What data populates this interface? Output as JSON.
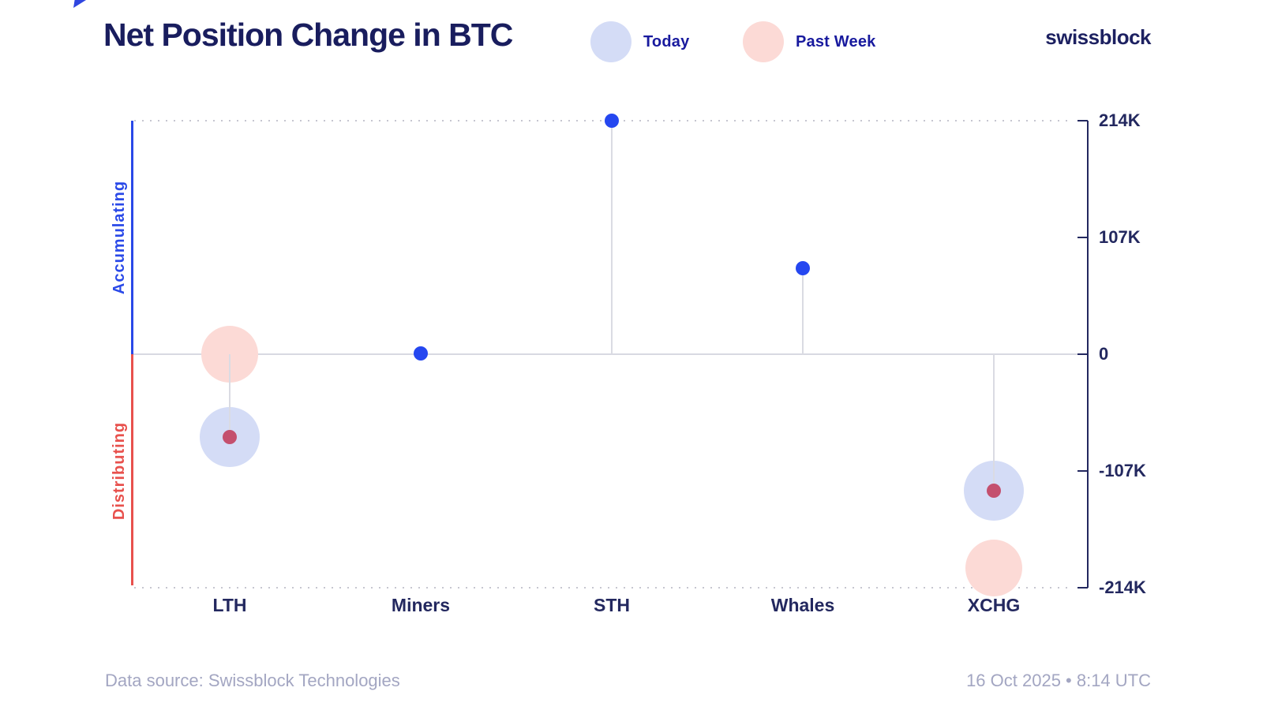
{
  "header": {
    "title": "Net Position Change in BTC",
    "brand": "swissblock"
  },
  "legend": {
    "items": [
      {
        "label": "Today",
        "swatch_color": "#d4dcf6"
      },
      {
        "label": "Past Week",
        "swatch_color": "#fcdad6"
      }
    ]
  },
  "chart_data": {
    "type": "scatter",
    "title": "Net Position Change in BTC",
    "categories": [
      "LTH",
      "Miners",
      "STH",
      "Whales",
      "XCHG"
    ],
    "series": [
      {
        "name": "Today",
        "values": [
          -76000,
          1000,
          214000,
          79000,
          -125000
        ],
        "markers": [
          "bubble",
          "dot",
          "dot",
          "dot",
          "bubble"
        ]
      },
      {
        "name": "Past Week",
        "values": [
          0,
          null,
          null,
          null,
          -196000
        ],
        "markers": [
          "bubble",
          null,
          null,
          null,
          "bubble"
        ]
      }
    ],
    "yticks": [
      {
        "value": 214000,
        "label": "214K"
      },
      {
        "value": 107000,
        "label": "107K"
      },
      {
        "value": 0,
        "label": "0"
      },
      {
        "value": -107000,
        "label": "-107K"
      },
      {
        "value": -214000,
        "label": "-214K"
      }
    ],
    "ylim": [
      -214000,
      214000
    ],
    "y_region_labels": {
      "positive": "Accumulating",
      "negative": "Distributing"
    },
    "legend_position": "top",
    "grid": "dotted-top-bottom-borders"
  },
  "footer": {
    "source": "Data source: Swissblock Technologies",
    "timestamp": "16 Oct 2025 • 8:14 UTC"
  },
  "colors": {
    "accent_blue_dot": "#2547f0",
    "axis_blue": "#2a49e8",
    "axis_red": "#e8514d",
    "rose_center_dot": "#c4506e",
    "bubble_blue": "#d4dcf6",
    "bubble_pink": "#fcdad6",
    "navy_text": "#191d5e",
    "axis_navy": "#23285f",
    "legend_text": "#181a9e",
    "stem_gray": "#dadbe3",
    "zero_line_gray": "#d8d9e2",
    "dotted_gray": "#c6c6d0",
    "footer_gray": "#a3a6c2"
  }
}
